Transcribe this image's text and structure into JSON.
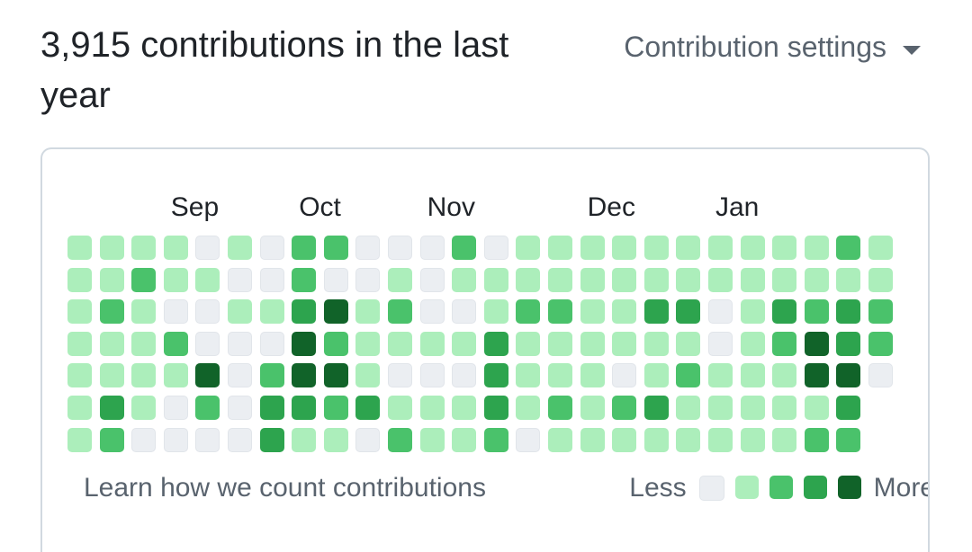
{
  "header": {
    "title": "3,915 contributions in the last year",
    "settings_label": "Contribution settings"
  },
  "graph": {
    "months": [
      {
        "label": "Sep",
        "week": 3
      },
      {
        "label": "Oct",
        "week": 7
      },
      {
        "label": "Nov",
        "week": 11
      },
      {
        "label": "Dec",
        "week": 16
      },
      {
        "label": "Jan",
        "week": 20
      }
    ],
    "colors": [
      "#ebeef2",
      "#aceebb",
      "#4ac26b",
      "#2da44e",
      "#116329"
    ],
    "weeks": [
      [
        1,
        1,
        1,
        1,
        1,
        1,
        1
      ],
      [
        1,
        1,
        2,
        1,
        1,
        3,
        2
      ],
      [
        1,
        2,
        1,
        1,
        1,
        1,
        0
      ],
      [
        1,
        1,
        0,
        2,
        1,
        0,
        0
      ],
      [
        0,
        1,
        0,
        0,
        4,
        2,
        0
      ],
      [
        1,
        0,
        1,
        0,
        0,
        0,
        0
      ],
      [
        0,
        0,
        1,
        0,
        2,
        3,
        3
      ],
      [
        2,
        2,
        3,
        4,
        4,
        3,
        1
      ],
      [
        2,
        0,
        4,
        2,
        4,
        2,
        1
      ],
      [
        0,
        0,
        1,
        1,
        1,
        3,
        0
      ],
      [
        0,
        1,
        2,
        1,
        0,
        1,
        2
      ],
      [
        0,
        0,
        0,
        1,
        0,
        1,
        1
      ],
      [
        2,
        1,
        0,
        1,
        0,
        1,
        1
      ],
      [
        0,
        1,
        1,
        3,
        3,
        3,
        2
      ],
      [
        1,
        1,
        2,
        1,
        1,
        1,
        0
      ],
      [
        1,
        1,
        2,
        1,
        1,
        2,
        1
      ],
      [
        1,
        1,
        1,
        1,
        1,
        1,
        1
      ],
      [
        1,
        1,
        1,
        1,
        0,
        2,
        1
      ],
      [
        1,
        1,
        3,
        1,
        1,
        3,
        1
      ],
      [
        1,
        1,
        3,
        1,
        2,
        1,
        1
      ],
      [
        1,
        1,
        0,
        0,
        1,
        1,
        1
      ],
      [
        1,
        1,
        1,
        1,
        1,
        1,
        1
      ],
      [
        1,
        1,
        3,
        2,
        1,
        1,
        1
      ],
      [
        1,
        1,
        2,
        4,
        4,
        1,
        2
      ],
      [
        2,
        1,
        3,
        3,
        4,
        3,
        2
      ],
      [
        1,
        1,
        2,
        2,
        0,
        -1,
        -1
      ]
    ]
  },
  "footer": {
    "learn_link": "Learn how we count contributions",
    "less": "Less",
    "more": "More"
  }
}
